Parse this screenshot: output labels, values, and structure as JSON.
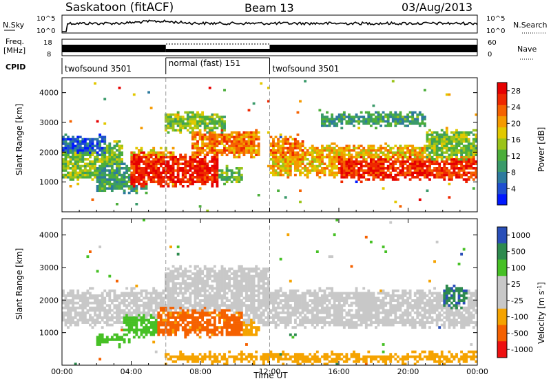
{
  "header": {
    "station": "Saskatoon (fitACF)",
    "beam": "Beam 13",
    "date": "03/Aug/2013"
  },
  "noise_panel": {
    "left_label": "N.Sky",
    "right_label": "N.Search",
    "ytick_top": "10^5",
    "ytick_bottom": "10^0",
    "ytick_top_right": "10^5",
    "ytick_bottom_right": "10^0"
  },
  "freq_panel": {
    "left_label_1": "Freq.",
    "left_label_2": "[MHz]",
    "ytick_top": "18",
    "ytick_bottom": "8",
    "right_label": "Nave",
    "ytick_top_right": "60",
    "ytick_bottom_right": "0"
  },
  "cpid_panel": {
    "label": "CPID",
    "segments": [
      {
        "name": "twofsound 3501",
        "start_hour": 0,
        "end_hour": 6
      },
      {
        "name": "normal (fast) 151",
        "start_hour": 6,
        "end_hour": 12
      },
      {
        "name": "twofsound 3501",
        "start_hour": 12,
        "end_hour": 24
      }
    ]
  },
  "xaxis": {
    "label": "Time UT",
    "ticks": [
      "00:00",
      "04:00",
      "08:00",
      "12:00",
      "16:00",
      "20:00",
      "00:00"
    ],
    "range_hours": [
      0,
      24
    ]
  },
  "chart_data": [
    {
      "type": "heatmap",
      "ylabel": "Slant Range [km]",
      "ylim": [
        0,
        4500
      ],
      "yticks": [
        "1000",
        "2000",
        "3000",
        "4000"
      ],
      "colorbar": {
        "label": "Power [dB]",
        "ticks": [
          "4",
          "8",
          "12",
          "16",
          "20",
          "24",
          "28"
        ],
        "range": [
          0,
          30
        ],
        "colors": [
          "#0018ff",
          "#1f4fd0",
          "#2d7a9e",
          "#3a9a6a",
          "#4cae3b",
          "#9bc41a",
          "#e2c800",
          "#f59a00",
          "#f56200",
          "#ee2800",
          "#e60000"
        ]
      },
      "regions": [
        {
          "t0": 0,
          "t1": 3.5,
          "r0": 1100,
          "r1": 2300,
          "value": 14
        },
        {
          "t0": 0,
          "t1": 2.5,
          "r0": 2000,
          "r1": 2500,
          "value": 5
        },
        {
          "t0": 2.0,
          "t1": 5.0,
          "r0": 700,
          "r1": 1600,
          "value": 10
        },
        {
          "t0": 4.0,
          "t1": 6.5,
          "r0": 1000,
          "r1": 2100,
          "value": 18
        },
        {
          "t0": 4.0,
          "t1": 9.0,
          "r0": 900,
          "r1": 1900,
          "value": 27
        },
        {
          "t0": 6.0,
          "t1": 9.5,
          "r0": 2700,
          "r1": 3300,
          "value": 14
        },
        {
          "t0": 7.5,
          "t1": 11.5,
          "r0": 1900,
          "r1": 2700,
          "value": 22
        },
        {
          "t0": 9.0,
          "t1": 10.5,
          "r0": 1000,
          "r1": 1500,
          "value": 13
        },
        {
          "t0": 12.0,
          "t1": 24.0,
          "r0": 1200,
          "r1": 2200,
          "value": 19
        },
        {
          "t0": 12.0,
          "t1": 14.0,
          "r0": 1800,
          "r1": 2500,
          "value": 22
        },
        {
          "t0": 16.0,
          "t1": 24.0,
          "r0": 1100,
          "r1": 1800,
          "value": 26
        },
        {
          "t0": 15.0,
          "t1": 21.0,
          "r0": 2900,
          "r1": 3300,
          "value": 10
        },
        {
          "t0": 21.0,
          "t1": 24.0,
          "r0": 1800,
          "r1": 2700,
          "value": 14
        }
      ]
    },
    {
      "type": "heatmap",
      "ylabel": "Slant Range [km]",
      "ylim": [
        0,
        4500
      ],
      "yticks": [
        "1000",
        "2000",
        "3000",
        "4000"
      ],
      "colorbar": {
        "label": "Velocity [m s^-1]",
        "ticks": [
          "1000",
          "500",
          "100",
          "25",
          "-25",
          "-100",
          "-500",
          "-1000"
        ],
        "bands": [
          "#2a4fb8",
          "#2d8a4e",
          "#46c025",
          "#c8c8c8",
          "#c8c8c8",
          "#f5a300",
          "#f56100",
          "#ee1010"
        ],
        "band_values": [
          1000,
          500,
          100,
          25,
          -25,
          -100,
          -500,
          -1000
        ]
      },
      "regions": [
        {
          "t0": 0,
          "t1": 24,
          "r0": 1200,
          "r1": 2300,
          "value": 0
        },
        {
          "t0": 6,
          "t1": 12,
          "r0": 2000,
          "r1": 3000,
          "value": 0
        },
        {
          "t0": 2.0,
          "t1": 4.0,
          "r0": 650,
          "r1": 900,
          "value": 150
        },
        {
          "t0": 3.5,
          "t1": 5.5,
          "r0": 900,
          "r1": 1500,
          "value": 120
        },
        {
          "t0": 5.5,
          "t1": 10.5,
          "r0": 950,
          "r1": 1700,
          "value": -400
        },
        {
          "t0": 10.5,
          "t1": 11.5,
          "r0": 950,
          "r1": 1300,
          "value": -150
        },
        {
          "t0": 22.0,
          "t1": 23.5,
          "r0": 1800,
          "r1": 2400,
          "value": 700
        },
        {
          "t0": 6.0,
          "t1": 24.0,
          "r0": 100,
          "r1": 350,
          "value": -150
        }
      ]
    }
  ]
}
